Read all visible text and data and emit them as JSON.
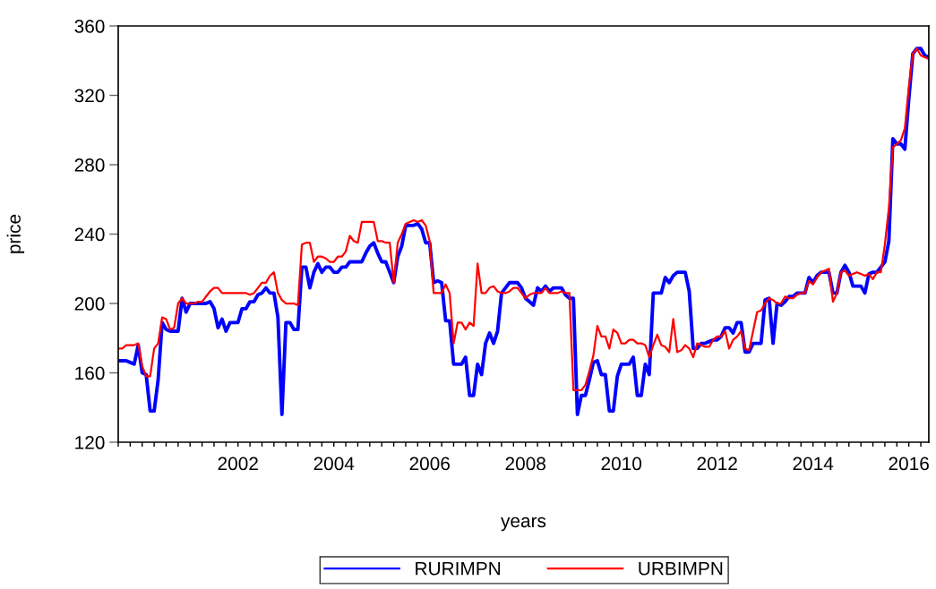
{
  "chart_data": {
    "type": "line",
    "xlabel": "years",
    "ylabel": "price",
    "x": [
      "2000-01",
      "2000-02",
      "2000-03",
      "2000-04",
      "2000-05",
      "2000-06",
      "2000-07",
      "2000-08",
      "2000-09",
      "2000-10",
      "2000-11",
      "2000-12",
      "2001-01",
      "2001-02",
      "2001-03",
      "2001-04",
      "2001-05",
      "2001-06",
      "2001-07",
      "2001-08",
      "2001-09",
      "2001-10",
      "2001-11",
      "2001-12",
      "2002-01",
      "2002-02",
      "2002-03",
      "2002-04",
      "2002-05",
      "2002-06",
      "2002-07",
      "2002-08",
      "2002-09",
      "2002-10",
      "2002-11",
      "2002-12",
      "2003-01",
      "2003-02",
      "2003-03",
      "2003-04",
      "2003-05",
      "2003-06",
      "2003-07",
      "2003-08",
      "2003-09",
      "2003-10",
      "2003-11",
      "2003-12",
      "2004-01",
      "2004-02",
      "2004-03",
      "2004-04",
      "2004-05",
      "2004-06",
      "2004-07",
      "2004-08",
      "2004-09",
      "2004-10",
      "2004-11",
      "2004-12",
      "2005-01",
      "2005-02",
      "2005-03",
      "2005-04",
      "2005-05",
      "2005-06",
      "2005-07",
      "2005-08",
      "2005-09",
      "2005-10",
      "2005-11",
      "2005-12",
      "2006-01",
      "2006-02",
      "2006-03",
      "2006-04",
      "2006-05",
      "2006-06",
      "2006-07",
      "2006-08",
      "2006-09",
      "2006-10",
      "2006-11",
      "2006-12",
      "2007-01",
      "2007-02",
      "2007-03",
      "2007-04",
      "2007-05",
      "2007-06",
      "2007-07",
      "2007-08",
      "2007-09",
      "2007-10",
      "2007-11",
      "2007-12",
      "2008-01",
      "2008-02",
      "2008-03",
      "2008-04",
      "2008-05",
      "2008-06",
      "2008-07",
      "2008-08",
      "2008-09",
      "2008-10",
      "2008-11",
      "2008-12",
      "2009-01",
      "2009-02",
      "2009-03",
      "2009-04",
      "2009-05",
      "2009-06",
      "2009-07",
      "2009-08",
      "2009-09",
      "2009-10",
      "2009-11",
      "2009-12",
      "2010-01",
      "2010-02",
      "2010-03",
      "2010-04",
      "2010-05",
      "2010-06",
      "2010-07",
      "2010-08",
      "2010-09",
      "2010-10",
      "2010-11",
      "2010-12",
      "2011-01",
      "2011-02",
      "2011-03",
      "2011-04",
      "2011-05",
      "2011-06",
      "2011-07",
      "2011-08",
      "2011-09",
      "2011-10",
      "2011-11",
      "2011-12",
      "2012-01",
      "2012-02",
      "2012-03",
      "2012-04",
      "2012-05",
      "2012-06",
      "2012-07",
      "2012-08",
      "2012-09",
      "2012-10",
      "2012-11",
      "2012-12",
      "2013-01",
      "2013-02",
      "2013-03",
      "2013-04",
      "2013-05",
      "2013-06",
      "2013-07",
      "2013-08",
      "2013-09",
      "2013-10",
      "2013-11",
      "2013-12",
      "2014-01",
      "2014-02",
      "2014-03",
      "2014-04",
      "2014-05",
      "2014-06",
      "2014-07",
      "2014-08",
      "2014-09",
      "2014-10",
      "2014-11",
      "2014-12",
      "2015-01",
      "2015-02",
      "2015-03",
      "2015-04",
      "2015-05",
      "2015-06",
      "2015-07",
      "2015-08",
      "2015-09",
      "2015-10",
      "2015-11",
      "2015-12",
      "2016-01",
      "2016-02",
      "2016-03",
      "2016-04",
      "2016-05",
      "2016-06",
      "2016-07",
      "2016-08",
      "2016-09",
      "2016-10",
      "2016-11",
      "2016-12"
    ],
    "series": [
      {
        "name": "RURIMPN",
        "color": "#0000ff",
        "values": [
          167,
          167,
          167,
          166,
          165,
          176,
          160,
          159,
          138,
          138,
          156,
          189,
          185,
          184,
          184,
          184,
          203,
          195,
          200,
          200,
          200,
          200,
          200,
          201,
          197,
          186,
          191,
          184,
          189,
          189,
          189,
          197,
          197,
          201,
          201,
          205,
          206,
          209,
          206,
          206,
          192,
          136,
          189,
          189,
          185,
          185,
          221,
          221,
          209,
          218,
          223,
          218,
          221,
          221,
          218,
          218,
          221,
          221,
          224,
          224,
          224,
          224,
          229,
          233,
          235,
          229,
          224,
          224,
          218,
          212,
          227,
          233,
          245,
          245,
          245,
          246,
          243,
          235,
          235,
          212,
          213,
          212,
          190,
          190,
          165,
          165,
          165,
          169,
          147,
          147,
          165,
          159,
          177,
          183,
          177,
          184,
          206,
          209,
          212,
          212,
          212,
          209,
          203,
          201,
          199,
          209,
          207,
          210,
          207,
          209,
          209,
          209,
          205,
          203,
          203,
          136,
          147,
          147,
          156,
          166,
          167,
          159,
          159,
          138,
          138,
          158,
          165,
          165,
          165,
          169,
          147,
          147,
          165,
          159,
          206,
          206,
          206,
          215,
          212,
          216,
          218,
          218,
          218,
          207,
          174,
          174,
          177,
          177,
          178,
          179,
          179,
          181,
          186,
          186,
          183,
          189,
          189,
          172,
          172,
          177,
          177,
          177,
          202,
          203,
          177,
          200,
          199,
          201,
          204,
          204,
          206,
          206,
          206,
          215,
          212,
          216,
          218,
          218,
          218,
          206,
          206,
          218,
          222,
          218,
          210,
          210,
          210,
          206,
          217,
          218,
          218,
          221,
          224,
          236,
          295,
          292,
          292,
          289,
          318,
          344,
          347,
          347,
          343,
          342
        ]
      },
      {
        "name": "URBIMPN",
        "color": "#ff0000",
        "values": [
          174,
          174,
          176,
          176,
          176,
          177,
          164,
          158,
          158,
          174,
          177,
          192,
          191,
          185,
          186,
          200,
          203,
          200,
          200,
          200,
          201,
          201,
          204,
          207,
          209,
          209,
          206,
          206,
          206,
          206,
          206,
          206,
          206,
          205,
          206,
          209,
          212,
          212,
          216,
          218,
          206,
          202,
          200,
          200,
          200,
          199,
          234,
          235,
          235,
          224,
          227,
          227,
          226,
          224,
          224,
          227,
          227,
          230,
          239,
          236,
          235,
          247,
          247,
          247,
          247,
          236,
          236,
          235,
          235,
          212,
          235,
          240,
          246,
          247,
          248,
          247,
          248,
          245,
          236,
          206,
          206,
          206,
          211,
          206,
          177,
          189,
          189,
          185,
          189,
          187,
          223,
          206,
          206,
          209,
          210,
          207,
          206,
          206,
          207,
          209,
          209,
          206,
          203,
          205,
          206,
          206,
          206,
          209,
          206,
          206,
          206,
          207,
          206,
          206,
          150,
          150,
          150,
          153,
          161,
          170,
          187,
          181,
          181,
          174,
          185,
          183,
          177,
          177,
          179,
          179,
          177,
          177,
          176,
          169,
          176,
          182,
          176,
          175,
          172,
          191,
          172,
          173,
          176,
          174,
          169,
          177,
          176,
          175,
          175,
          179,
          181,
          181,
          184,
          174,
          179,
          181,
          184,
          174,
          173,
          184,
          195,
          196,
          200,
          203,
          202,
          200,
          200,
          204,
          203,
          203,
          205,
          206,
          206,
          213,
          211,
          215,
          218,
          219,
          220,
          201,
          206,
          218,
          219,
          216,
          217,
          218,
          217,
          216,
          217,
          214,
          218,
          218,
          234,
          255,
          290,
          292,
          294,
          301,
          325,
          344,
          347,
          343,
          342,
          341
        ]
      }
    ],
    "xlim": [
      "2000-01",
      "2016-12"
    ],
    "xticks": [
      {
        "value": "2000-01",
        "label": null
      },
      {
        "value": "2000-04",
        "label": null
      },
      {
        "value": "2000-07",
        "label": null
      },
      {
        "value": "2000-10",
        "label": null
      },
      {
        "value": "2001-01",
        "label": null
      },
      {
        "value": "2001-04",
        "label": null
      },
      {
        "value": "2001-07",
        "label": null
      },
      {
        "value": "2001-10",
        "label": null
      },
      {
        "value": "2002-01",
        "label": null
      },
      {
        "value": "2002-04",
        "label": null
      },
      {
        "value": "2002-07",
        "label": "2002"
      },
      {
        "value": "2002-10",
        "label": null
      },
      {
        "value": "2003-01",
        "label": null
      },
      {
        "value": "2003-04",
        "label": null
      },
      {
        "value": "2003-07",
        "label": null
      },
      {
        "value": "2003-10",
        "label": null
      },
      {
        "value": "2004-01",
        "label": null
      },
      {
        "value": "2004-04",
        "label": null
      },
      {
        "value": "2004-07",
        "label": "2004"
      },
      {
        "value": "2004-10",
        "label": null
      },
      {
        "value": "2005-01",
        "label": null
      },
      {
        "value": "2005-04",
        "label": null
      },
      {
        "value": "2005-07",
        "label": null
      },
      {
        "value": "2005-10",
        "label": null
      },
      {
        "value": "2006-01",
        "label": null
      },
      {
        "value": "2006-04",
        "label": null
      },
      {
        "value": "2006-07",
        "label": "2006"
      },
      {
        "value": "2006-10",
        "label": null
      },
      {
        "value": "2007-01",
        "label": null
      },
      {
        "value": "2007-04",
        "label": null
      },
      {
        "value": "2007-07",
        "label": null
      },
      {
        "value": "2007-10",
        "label": null
      },
      {
        "value": "2008-01",
        "label": null
      },
      {
        "value": "2008-04",
        "label": null
      },
      {
        "value": "2008-07",
        "label": "2008"
      },
      {
        "value": "2008-10",
        "label": null
      },
      {
        "value": "2009-01",
        "label": null
      },
      {
        "value": "2009-04",
        "label": null
      },
      {
        "value": "2009-07",
        "label": null
      },
      {
        "value": "2009-10",
        "label": null
      },
      {
        "value": "2010-01",
        "label": null
      },
      {
        "value": "2010-04",
        "label": null
      },
      {
        "value": "2010-07",
        "label": "2010"
      },
      {
        "value": "2010-10",
        "label": null
      },
      {
        "value": "2011-01",
        "label": null
      },
      {
        "value": "2011-04",
        "label": null
      },
      {
        "value": "2011-07",
        "label": null
      },
      {
        "value": "2011-10",
        "label": null
      },
      {
        "value": "2012-01",
        "label": null
      },
      {
        "value": "2012-04",
        "label": null
      },
      {
        "value": "2012-07",
        "label": "2012"
      },
      {
        "value": "2012-10",
        "label": null
      },
      {
        "value": "2013-01",
        "label": null
      },
      {
        "value": "2013-04",
        "label": null
      },
      {
        "value": "2013-07",
        "label": null
      },
      {
        "value": "2013-10",
        "label": null
      },
      {
        "value": "2014-01",
        "label": null
      },
      {
        "value": "2014-04",
        "label": null
      },
      {
        "value": "2014-07",
        "label": "2014"
      },
      {
        "value": "2014-10",
        "label": null
      },
      {
        "value": "2015-01",
        "label": null
      },
      {
        "value": "2015-04",
        "label": null
      },
      {
        "value": "2015-07",
        "label": null
      },
      {
        "value": "2015-10",
        "label": null
      },
      {
        "value": "2016-01",
        "label": null
      },
      {
        "value": "2016-04",
        "label": null
      },
      {
        "value": "2016-07",
        "label": "2016"
      },
      {
        "value": "2016-10",
        "label": null
      }
    ],
    "ylim": [
      120,
      360
    ],
    "yticks": [
      120,
      160,
      200,
      240,
      280,
      320,
      360
    ],
    "legend": "bottom"
  }
}
